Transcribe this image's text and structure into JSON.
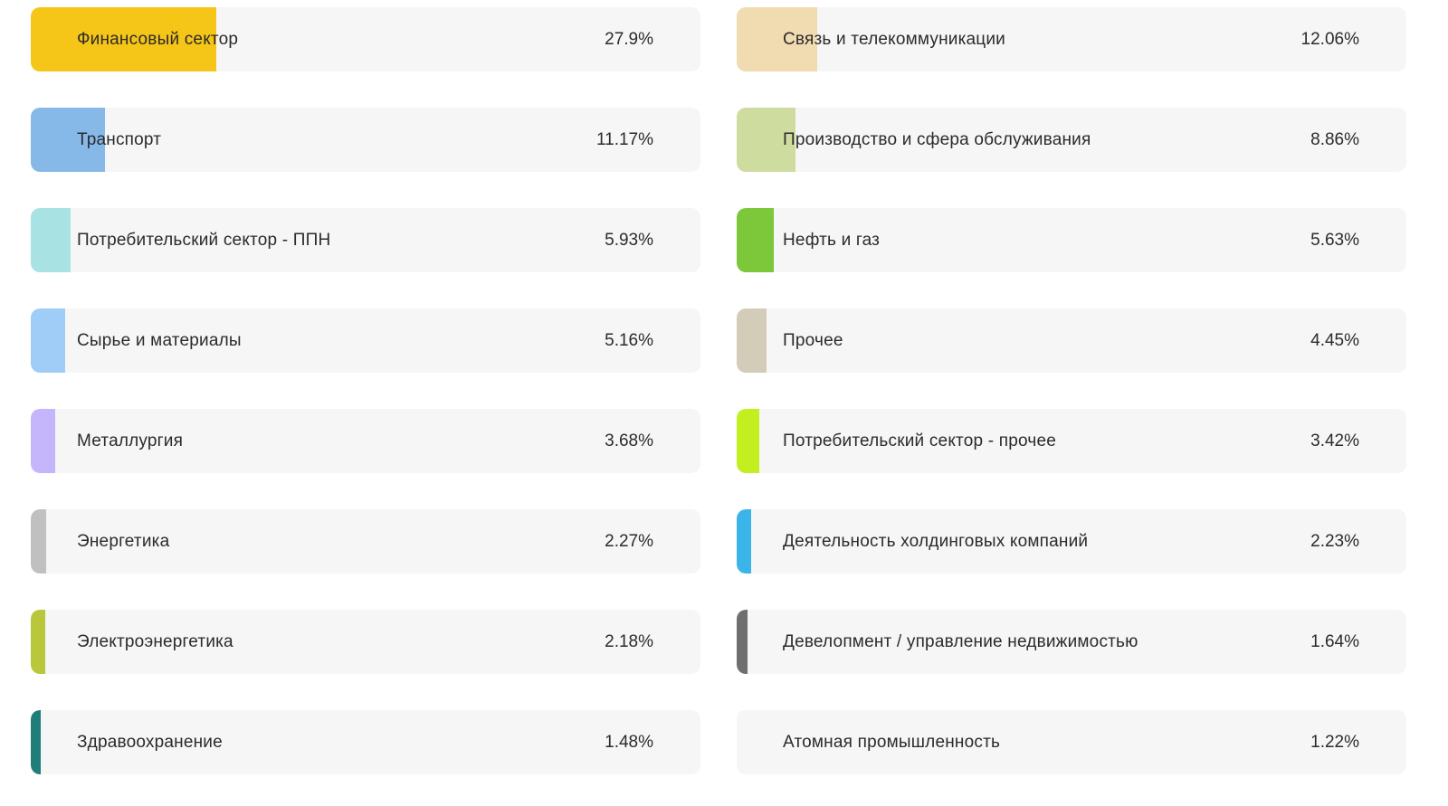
{
  "sectors": [
    {
      "label": "Финансовый сектор",
      "value": "27.9%",
      "share": 27.9,
      "color": "#f5c518"
    },
    {
      "label": "Связь и телекоммуникации",
      "value": "12.06%",
      "share": 12.06,
      "color": "#f0dcb0"
    },
    {
      "label": "Транспорт",
      "value": "11.17%",
      "share": 11.17,
      "color": "#86b8e8"
    },
    {
      "label": "Производство и сфера обслуживания",
      "value": "8.86%",
      "share": 8.86,
      "color": "#cfdca0"
    },
    {
      "label": "Потребительский сектор - ППН",
      "value": "5.93%",
      "share": 5.93,
      "color": "#a8e2e3"
    },
    {
      "label": "Нефть и газ",
      "value": "5.63%",
      "share": 5.63,
      "color": "#7cc83a"
    },
    {
      "label": "Сырье и материалы",
      "value": "5.16%",
      "share": 5.16,
      "color": "#a0cdf7"
    },
    {
      "label": "Прочее",
      "value": "4.45%",
      "share": 4.45,
      "color": "#d3ccb8"
    },
    {
      "label": "Металлургия",
      "value": "3.68%",
      "share": 3.68,
      "color": "#c5b5fa"
    },
    {
      "label": "Потребительский сектор - прочее",
      "value": "3.42%",
      "share": 3.42,
      "color": "#c3ef20"
    },
    {
      "label": "Энергетика",
      "value": "2.27%",
      "share": 2.27,
      "color": "#c0c0c0"
    },
    {
      "label": "Деятельность холдинговых компаний",
      "value": "2.23%",
      "share": 2.23,
      "color": "#3bb5e8"
    },
    {
      "label": "Электроэнергетика",
      "value": "2.18%",
      "share": 2.18,
      "color": "#b8c83a"
    },
    {
      "label": "Девелопмент / управление недвижимостью",
      "value": "1.64%",
      "share": 1.64,
      "color": "#6f6f6f"
    },
    {
      "label": "Здравоохранение",
      "value": "1.48%",
      "share": 1.48,
      "color": "#1f7d7a"
    },
    {
      "label": "Атомная промышленность",
      "value": "1.22%",
      "share": 1.22,
      "color": "#f6f6f6"
    }
  ]
}
